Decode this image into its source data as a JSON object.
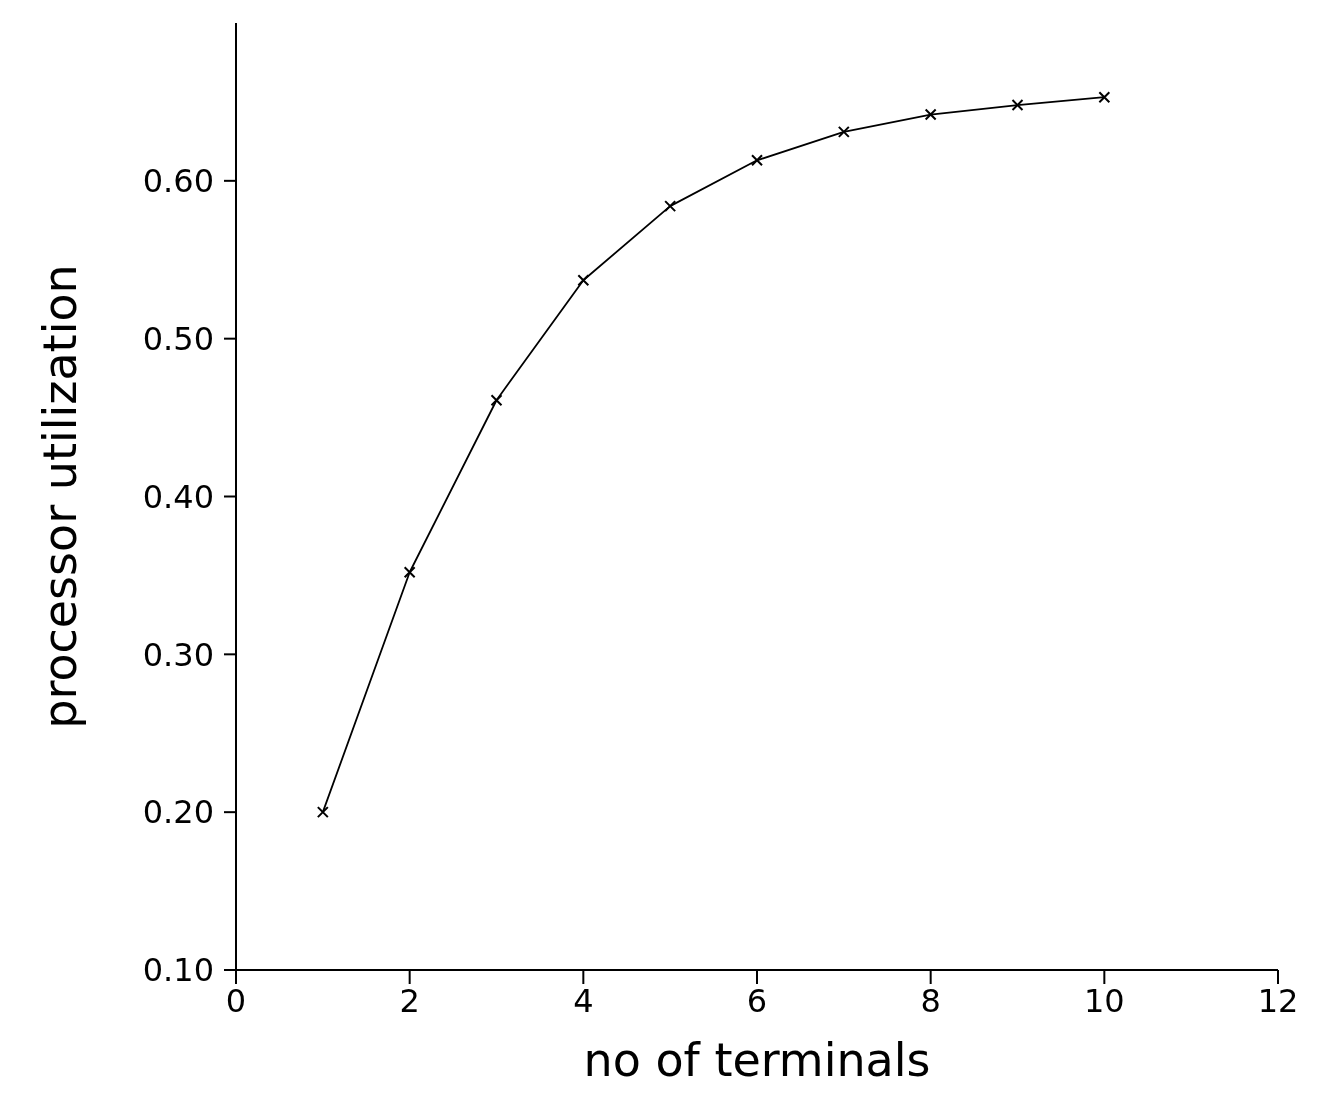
{
  "chart_data": {
    "type": "line",
    "xlabel": "no of terminals",
    "ylabel": "processor utilization",
    "x": [
      1,
      2,
      3,
      4,
      5,
      6,
      7,
      8,
      9,
      10
    ],
    "series": [
      {
        "color": "#000000",
        "values": [
          0.2,
          0.352,
          0.461,
          0.537,
          0.584,
          0.613,
          0.631,
          0.642,
          0.648,
          0.653
        ]
      }
    ],
    "xlim": [
      0,
      12
    ],
    "ylim": [
      0.1,
      0.7
    ],
    "xticks": [
      0,
      2,
      4,
      6,
      8,
      10,
      12
    ],
    "yticks": [
      {
        "value": 0.1,
        "label": "0.10"
      },
      {
        "value": 0.2,
        "label": "0.20"
      },
      {
        "value": 0.3,
        "label": "0.30"
      },
      {
        "value": 0.4,
        "label": "0.40"
      },
      {
        "value": 0.5,
        "label": "0.50"
      },
      {
        "value": 0.6,
        "label": "0.60"
      }
    ],
    "marker": "cross",
    "line_style": "solid"
  }
}
